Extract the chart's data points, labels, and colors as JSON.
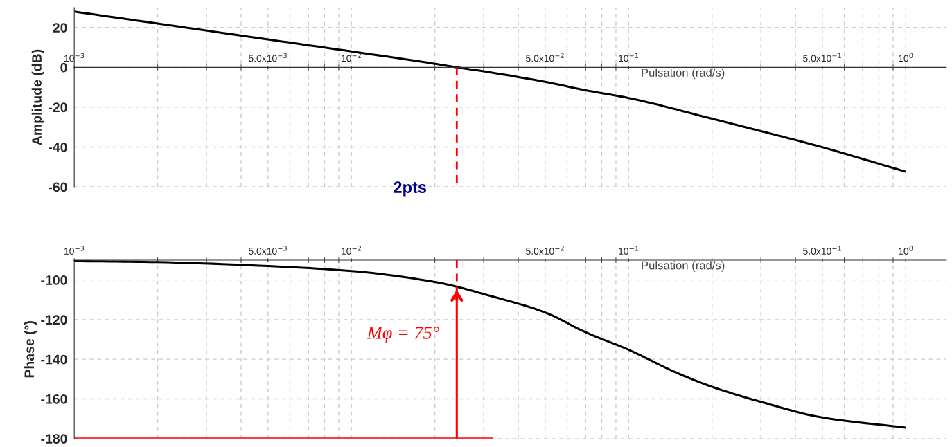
{
  "chart_data": [
    {
      "type": "line",
      "ylabel": "Amplitude (dB)",
      "xlabel": "Pulsation (rad/s)",
      "log": "x",
      "grid": true,
      "legend": false,
      "xlim": [
        0.001,
        1.4
      ],
      "ylim": [
        -60,
        30
      ],
      "xticks": [
        {
          "value": 0.001,
          "label": "10$^{−3}$"
        },
        {
          "value": 0.005,
          "label": "5.0x10$^{−3}$"
        },
        {
          "value": 0.01,
          "label": "10$^{−2}$"
        },
        {
          "value": 0.05,
          "label": "5.0x10$^{−2}$"
        },
        {
          "value": 0.1,
          "label": "10$^{−1}$"
        },
        {
          "value": 0.5,
          "label": "5.0x10$^{−1}$"
        },
        {
          "value": 1,
          "label": "10$^{0}$"
        }
      ],
      "yticks": [
        -60,
        -40,
        -20,
        0,
        20
      ],
      "series": [
        {
          "type": "line",
          "color": "#000000",
          "line_style": "solid",
          "x": [
            0.001,
            0.002,
            0.005,
            0.01,
            0.02,
            0.024,
            0.03,
            0.05,
            0.07,
            0.1,
            0.2,
            0.3,
            0.5,
            0.7,
            1
          ],
          "values": [
            28,
            22,
            14,
            8,
            1.8,
            0,
            -2,
            -7.3,
            -11.5,
            -15.4,
            -25.8,
            -32,
            -40.1,
            -46,
            -52.4
          ]
        },
        {
          "type": "line",
          "color": "#ff0000",
          "line_style": "dashed",
          "x": [
            0.024,
            0.024
          ],
          "values": [
            0,
            -60
          ]
        }
      ],
      "annotations": [
        "2pts"
      ]
    },
    {
      "type": "line",
      "ylabel": "Phase (°)",
      "xlabel": "Pulsation (rad/s)",
      "log": "x",
      "grid": true,
      "legend": false,
      "xlim": [
        0.001,
        1.4
      ],
      "ylim": [
        -180,
        -90
      ],
      "xticks": [
        {
          "value": 0.001,
          "label": "10$^{−3}$"
        },
        {
          "value": 0.005,
          "label": "5.0x10$^{−3}$"
        },
        {
          "value": 0.01,
          "label": "10$^{−2}$"
        },
        {
          "value": 0.05,
          "label": "5.0x10$^{−2}$"
        },
        {
          "value": 0.1,
          "label": "10$^{−1}$"
        },
        {
          "value": 0.5,
          "label": "5.0x10$^{−1}$"
        },
        {
          "value": 1,
          "label": "10$^{0}$"
        }
      ],
      "yticks": [
        -180,
        -160,
        -140,
        -120,
        -100
      ],
      "series": [
        {
          "type": "line",
          "color": "#000000",
          "line_style": "solid",
          "x": [
            0.001,
            0.002,
            0.005,
            0.01,
            0.02,
            0.024,
            0.03,
            0.05,
            0.07,
            0.1,
            0.15,
            0.2,
            0.3,
            0.5,
            1
          ],
          "values": [
            -90.5,
            -91,
            -93,
            -95.5,
            -101,
            -103.4,
            -107.1,
            -116.4,
            -126.4,
            -135.2,
            -147,
            -153.9,
            -161.5,
            -169.4,
            -174.5
          ]
        },
        {
          "type": "line",
          "color": "#ff0000",
          "line_style": "dashed",
          "x": [
            0.024,
            0.024
          ],
          "values": [
            -90,
            -104
          ]
        },
        {
          "type": "line",
          "color": "#ff0000",
          "line_style": "solid",
          "x": [
            0.001,
            0.0324
          ],
          "values": [
            -180,
            -180
          ]
        },
        {
          "type": "line",
          "color": "#ff0000",
          "line_style": "solid",
          "x": [
            0.024,
            0.024
          ],
          "values": [
            -180,
            -104
          ]
        }
      ],
      "annotations": [
        {
          "text": "Mφ = 75°",
          "x": 0.024,
          "y": -104
        }
      ]
    }
  ]
}
